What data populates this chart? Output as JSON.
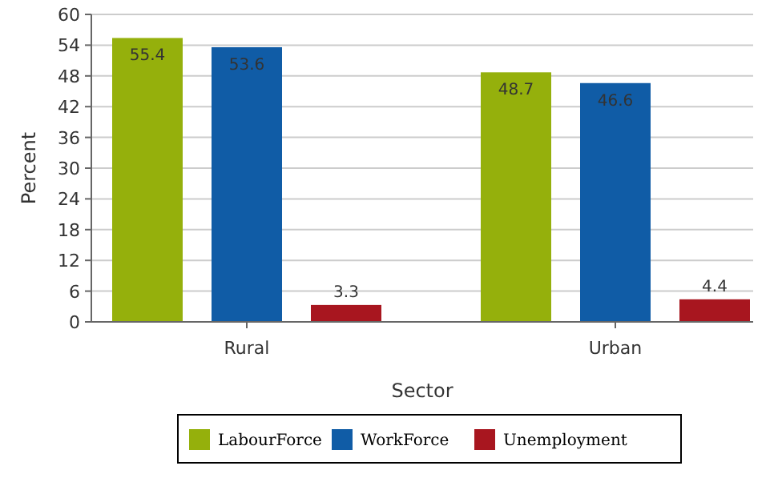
{
  "chart_data": {
    "type": "bar",
    "xlabel": "Sector",
    "ylabel": "Percent",
    "categories": [
      "Rural",
      "Urban"
    ],
    "series": [
      {
        "name": "LabourForce",
        "color": "#95b00c",
        "values": [
          55.4,
          48.7
        ]
      },
      {
        "name": "WorkForce",
        "color": "#105ca6",
        "values": [
          53.6,
          46.6
        ]
      },
      {
        "name": "Unemployment",
        "color": "#a8161f",
        "values": [
          3.3,
          4.4
        ]
      }
    ],
    "ylim": [
      0,
      60
    ],
    "yticks": [
      0,
      6,
      12,
      18,
      24,
      30,
      36,
      42,
      48,
      54,
      60
    ],
    "grid": "y",
    "data_labels": true,
    "legend": "bottom"
  }
}
